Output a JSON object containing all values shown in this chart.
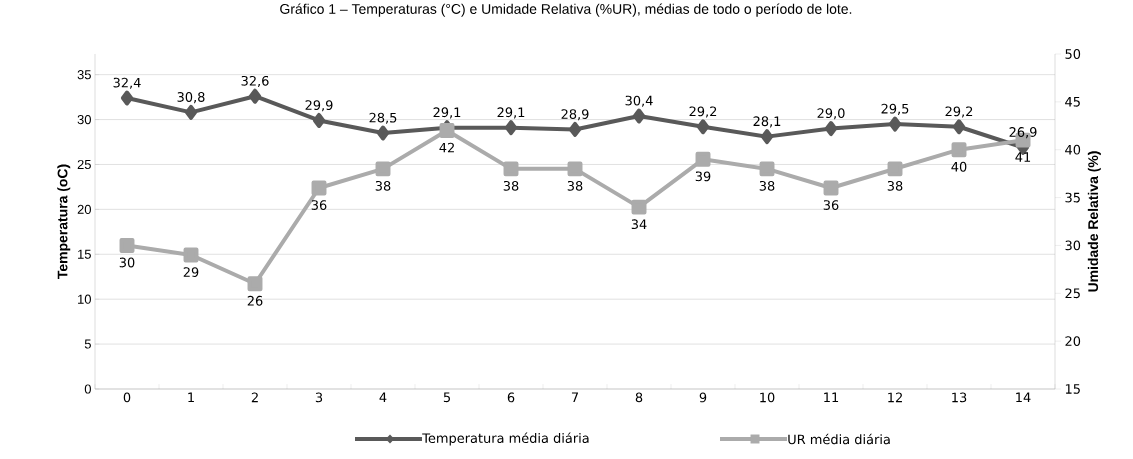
{
  "chart_data": {
    "type": "line",
    "title": "Gráfico 1 – Temperaturas (°C) e Umidade Relativa (%UR), médias de todo o período de lote.",
    "ylabel": "Temperatura (oC)",
    "y2label": "Umidade Relativa (%)",
    "categories": [
      "0",
      "1",
      "2",
      "3",
      "4",
      "5",
      "6",
      "7",
      "8",
      "9",
      "10",
      "11",
      "12",
      "13",
      "14"
    ],
    "ylim": [
      0,
      37.3
    ],
    "yticks": [
      0,
      5,
      10,
      15,
      20,
      25,
      30,
      35
    ],
    "y2lim": [
      15,
      50
    ],
    "y2ticks": [
      15,
      20,
      25,
      30,
      35,
      40,
      45,
      50
    ],
    "grid": "y",
    "legend": "bottom",
    "line_style": "solid",
    "series": [
      {
        "name": "Temperatura média diária",
        "color": "#595959",
        "marker": "diamond",
        "values": [
          32.4,
          30.8,
          32.6,
          29.9,
          28.5,
          29.1,
          29.1,
          28.9,
          30.4,
          29.2,
          28.1,
          29.0,
          29.5,
          29.2,
          26.9
        ],
        "value_labels": [
          "32,4",
          "30,8",
          "32,6",
          "29,9",
          "28,5",
          "29,1",
          "29,1",
          "28,9",
          "30,4",
          "29,2",
          "28,1",
          "29,0",
          "29,5",
          "29,2",
          "26,9"
        ]
      },
      {
        "name": "UR média diária",
        "color": "#ababab",
        "marker": "square",
        "axis": "y2",
        "values": [
          30,
          29,
          26,
          36,
          38,
          42,
          38,
          38,
          34,
          39,
          38,
          36,
          38,
          40,
          41
        ],
        "value_labels": [
          "30",
          "29",
          "26",
          "36",
          "38",
          "42",
          "38",
          "38",
          "34",
          "39",
          "38",
          "36",
          "38",
          "40",
          "41"
        ]
      }
    ]
  }
}
